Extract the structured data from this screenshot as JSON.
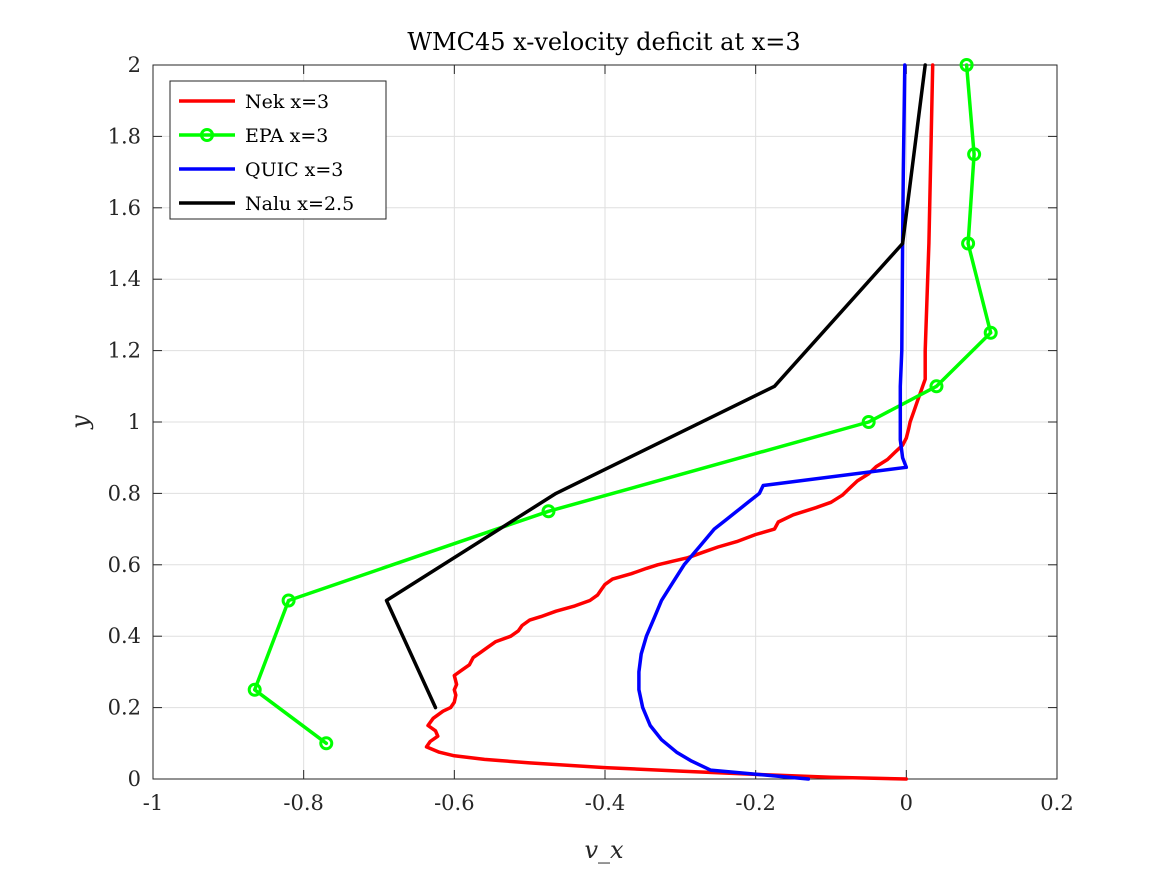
{
  "chart_data": {
    "type": "line",
    "title": "WMC45 x-velocity deficit at x=3",
    "xlabel": "v_x",
    "ylabel": "y",
    "xlim": [
      -1,
      0.2
    ],
    "ylim": [
      0,
      2
    ],
    "xticks": [
      -1,
      -0.8,
      -0.6,
      -0.4,
      -0.2,
      0,
      0.2
    ],
    "xtick_labels": [
      "-1",
      "-0.8",
      "-0.6",
      "-0.4",
      "-0.2",
      "0",
      "0.2"
    ],
    "yticks": [
      0,
      0.2,
      0.4,
      0.6,
      0.8,
      1,
      1.2,
      1.4,
      1.6,
      1.8,
      2
    ],
    "ytick_labels": [
      "0",
      "0.2",
      "0.4",
      "0.6",
      "0.8",
      "1",
      "1.2",
      "1.4",
      "1.6",
      "1.8",
      "2"
    ],
    "grid": true,
    "legend_position": "top-left",
    "series": [
      {
        "name": "Nek x=3",
        "color": "#ff0000",
        "marker": "none",
        "points": [
          [
            0.0,
            0.0
          ],
          [
            -0.1,
            0.005
          ],
          [
            -0.2,
            0.013
          ],
          [
            -0.3,
            0.022
          ],
          [
            -0.4,
            0.032
          ],
          [
            -0.5,
            0.045
          ],
          [
            -0.56,
            0.055
          ],
          [
            -0.6,
            0.065
          ],
          [
            -0.62,
            0.075
          ],
          [
            -0.637,
            0.09
          ],
          [
            -0.632,
            0.105
          ],
          [
            -0.622,
            0.12
          ],
          [
            -0.625,
            0.135
          ],
          [
            -0.635,
            0.15
          ],
          [
            -0.628,
            0.17
          ],
          [
            -0.615,
            0.19
          ],
          [
            -0.605,
            0.2
          ],
          [
            -0.6,
            0.215
          ],
          [
            -0.598,
            0.235
          ],
          [
            -0.6,
            0.25
          ],
          [
            -0.597,
            0.265
          ],
          [
            -0.6,
            0.29
          ],
          [
            -0.59,
            0.305
          ],
          [
            -0.58,
            0.32
          ],
          [
            -0.575,
            0.34
          ],
          [
            -0.565,
            0.355
          ],
          [
            -0.555,
            0.37
          ],
          [
            -0.545,
            0.385
          ],
          [
            -0.525,
            0.4
          ],
          [
            -0.515,
            0.415
          ],
          [
            -0.51,
            0.43
          ],
          [
            -0.5,
            0.445
          ],
          [
            -0.485,
            0.455
          ],
          [
            -0.465,
            0.47
          ],
          [
            -0.44,
            0.485
          ],
          [
            -0.42,
            0.5
          ],
          [
            -0.41,
            0.515
          ],
          [
            -0.405,
            0.53
          ],
          [
            -0.4,
            0.545
          ],
          [
            -0.39,
            0.56
          ],
          [
            -0.365,
            0.575
          ],
          [
            -0.345,
            0.59
          ],
          [
            -0.33,
            0.6
          ],
          [
            -0.31,
            0.61
          ],
          [
            -0.29,
            0.62
          ],
          [
            -0.27,
            0.635
          ],
          [
            -0.25,
            0.65
          ],
          [
            -0.225,
            0.665
          ],
          [
            -0.2,
            0.685
          ],
          [
            -0.175,
            0.7
          ],
          [
            -0.17,
            0.72
          ],
          [
            -0.15,
            0.74
          ],
          [
            -0.12,
            0.76
          ],
          [
            -0.1,
            0.775
          ],
          [
            -0.085,
            0.795
          ],
          [
            -0.075,
            0.815
          ],
          [
            -0.065,
            0.835
          ],
          [
            -0.05,
            0.855
          ],
          [
            -0.04,
            0.875
          ],
          [
            -0.025,
            0.895
          ],
          [
            -0.015,
            0.915
          ],
          [
            -0.005,
            0.935
          ],
          [
            0.0,
            0.955
          ],
          [
            0.003,
            0.98
          ],
          [
            0.005,
            1.0
          ],
          [
            0.01,
            1.03
          ],
          [
            0.015,
            1.06
          ],
          [
            0.02,
            1.09
          ],
          [
            0.025,
            1.12
          ],
          [
            0.025,
            1.2
          ],
          [
            0.03,
            1.5
          ],
          [
            0.033,
            1.8
          ],
          [
            0.035,
            2.0
          ]
        ]
      },
      {
        "name": "EPA x=3",
        "color": "#00ff00",
        "marker": "circle",
        "points": [
          [
            -0.77,
            0.1
          ],
          [
            -0.865,
            0.25
          ],
          [
            -0.82,
            0.5
          ],
          [
            -0.475,
            0.75
          ],
          [
            -0.05,
            1.0
          ],
          [
            0.04,
            1.1
          ],
          [
            0.112,
            1.25
          ],
          [
            0.082,
            1.5
          ],
          [
            0.09,
            1.75
          ],
          [
            0.08,
            2.0
          ]
        ]
      },
      {
        "name": "QUIC x=3",
        "color": "#0000ff",
        "marker": "none",
        "points": [
          [
            -0.13,
            0.0
          ],
          [
            -0.26,
            0.025
          ],
          [
            -0.285,
            0.05
          ],
          [
            -0.305,
            0.075
          ],
          [
            -0.325,
            0.11
          ],
          [
            -0.34,
            0.15
          ],
          [
            -0.35,
            0.2
          ],
          [
            -0.355,
            0.25
          ],
          [
            -0.355,
            0.3
          ],
          [
            -0.352,
            0.35
          ],
          [
            -0.345,
            0.4
          ],
          [
            -0.335,
            0.45
          ],
          [
            -0.325,
            0.5
          ],
          [
            -0.31,
            0.55
          ],
          [
            -0.295,
            0.6
          ],
          [
            -0.275,
            0.65
          ],
          [
            -0.255,
            0.7
          ],
          [
            -0.24,
            0.725
          ],
          [
            -0.225,
            0.75
          ],
          [
            -0.21,
            0.775
          ],
          [
            -0.195,
            0.8
          ],
          [
            -0.19,
            0.822
          ],
          [
            0.0,
            0.873
          ],
          [
            -0.005,
            0.9
          ],
          [
            -0.008,
            0.95
          ],
          [
            -0.008,
            1.0
          ],
          [
            -0.008,
            1.1
          ],
          [
            -0.006,
            1.2
          ],
          [
            -0.005,
            1.5
          ],
          [
            -0.004,
            1.7
          ],
          [
            -0.002,
            2.0
          ]
        ]
      },
      {
        "name": "Nalu x=2.5",
        "color": "#000000",
        "marker": "none",
        "points": [
          [
            -0.625,
            0.2
          ],
          [
            -0.69,
            0.5
          ],
          [
            -0.465,
            0.8
          ],
          [
            -0.175,
            1.1
          ],
          [
            -0.005,
            1.5
          ],
          [
            0.025,
            2.0
          ]
        ]
      }
    ]
  }
}
